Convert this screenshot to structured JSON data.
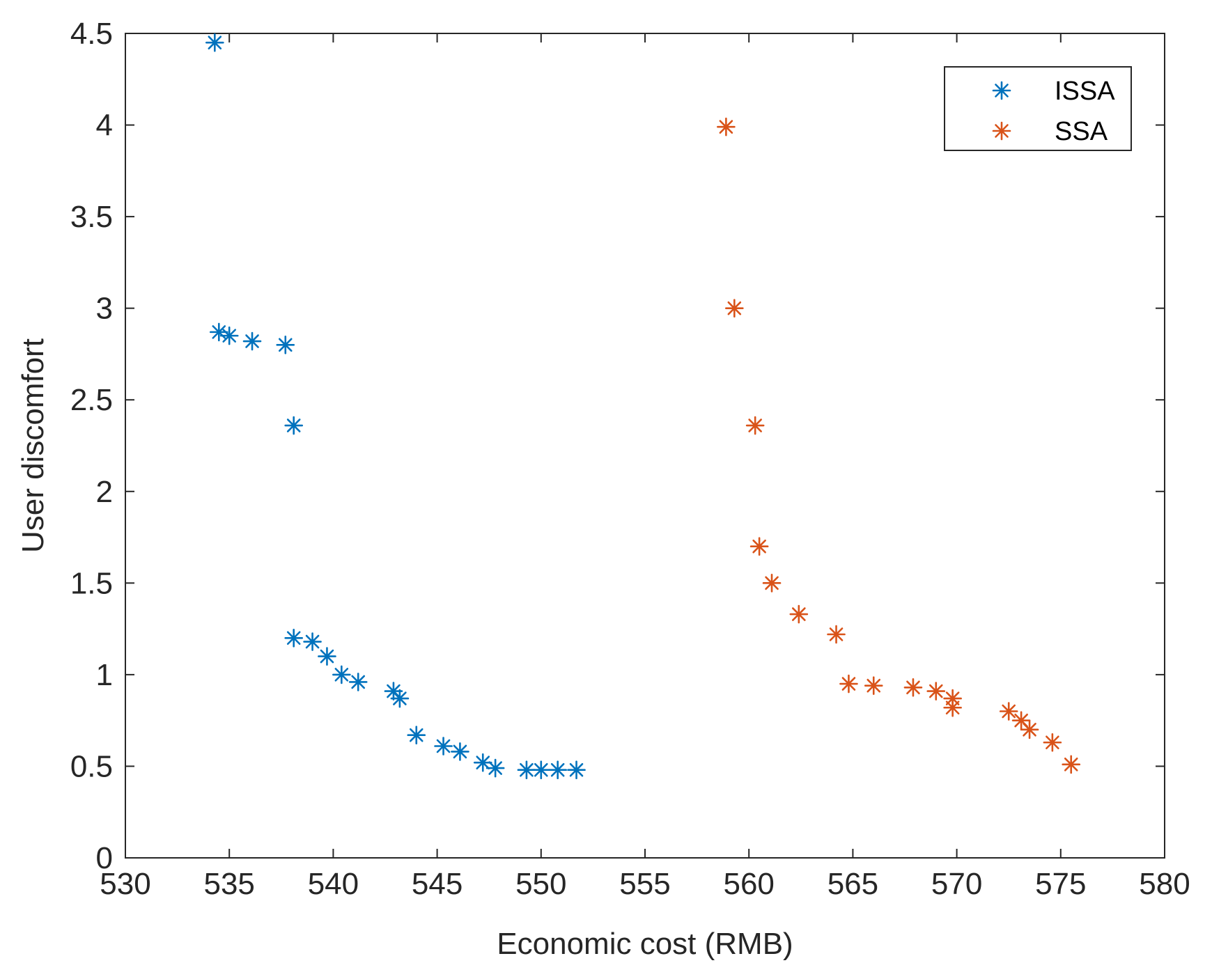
{
  "chart_data": {
    "type": "scatter",
    "title": "",
    "xlabel": "Economic cost (RMB)",
    "ylabel": "User discomfort",
    "xlim": [
      530,
      580
    ],
    "ylim": [
      0,
      4.5
    ],
    "xticks": [
      530,
      535,
      540,
      545,
      550,
      555,
      560,
      565,
      570,
      575,
      580
    ],
    "yticks": [
      0,
      0.5,
      1,
      1.5,
      2,
      2.5,
      3,
      3.5,
      4,
      4.5
    ],
    "xtick_labels": [
      "530",
      "535",
      "540",
      "545",
      "550",
      "555",
      "560",
      "565",
      "570",
      "575",
      "580"
    ],
    "ytick_labels": [
      "0",
      "0.5",
      "1",
      "1.5",
      "2",
      "2.5",
      "3",
      "3.5",
      "4",
      "4.5"
    ],
    "grid": false,
    "legend_position": "top-right",
    "marker": "asterisk",
    "series": [
      {
        "name": "ISSA",
        "color": "#0072BD",
        "x": [
          534.3,
          534.5,
          535.0,
          536.1,
          537.7,
          538.1,
          538.1,
          539.0,
          539.7,
          540.4,
          541.2,
          542.9,
          543.2,
          544.0,
          545.3,
          546.1,
          547.2,
          547.8,
          549.3,
          550.0,
          550.8,
          551.7
        ],
        "y": [
          4.45,
          2.87,
          2.85,
          2.82,
          2.8,
          2.36,
          1.2,
          1.18,
          1.1,
          1.0,
          0.96,
          0.91,
          0.87,
          0.67,
          0.61,
          0.58,
          0.52,
          0.49,
          0.48,
          0.48,
          0.48,
          0.48
        ]
      },
      {
        "name": "SSA",
        "color": "#D95319",
        "x": [
          558.9,
          559.3,
          560.3,
          560.5,
          561.1,
          562.4,
          564.2,
          564.8,
          566.0,
          567.9,
          569.0,
          569.8,
          569.8,
          572.5,
          573.1,
          573.5,
          574.6,
          575.5
        ],
        "y": [
          3.99,
          3.0,
          2.36,
          1.7,
          1.5,
          1.33,
          1.22,
          0.95,
          0.94,
          0.93,
          0.91,
          0.87,
          0.82,
          0.8,
          0.75,
          0.7,
          0.63,
          0.51
        ]
      }
    ]
  }
}
